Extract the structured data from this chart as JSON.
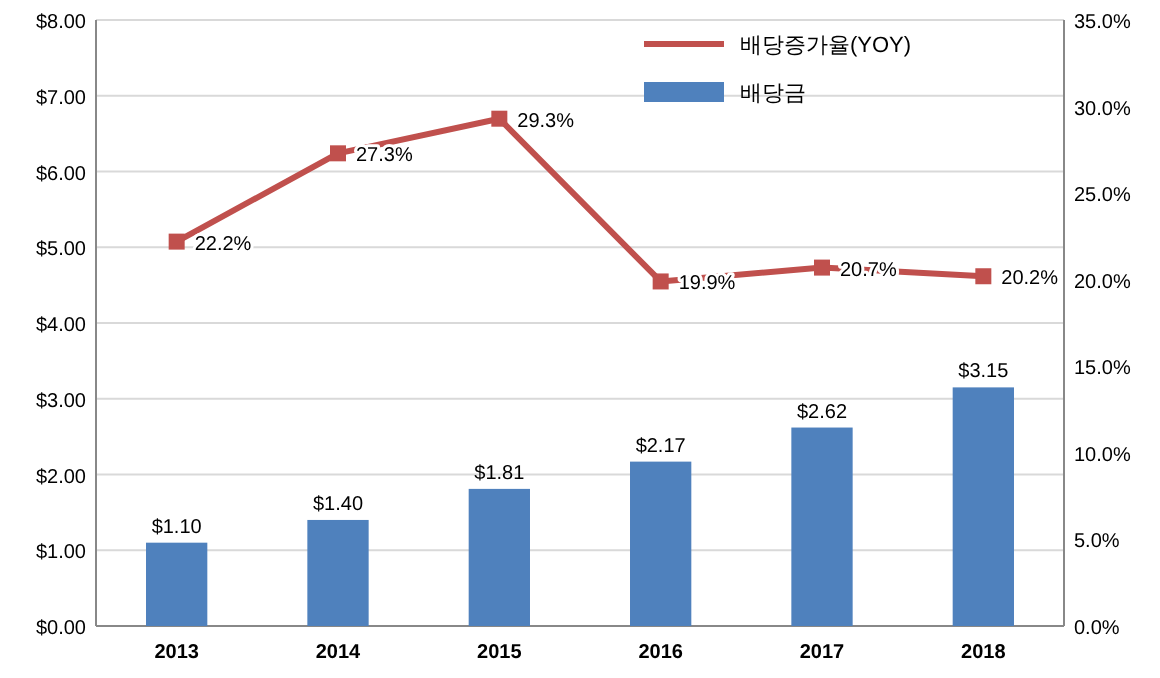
{
  "chart_data": {
    "type": "bar",
    "categories": [
      "2013",
      "2014",
      "2015",
      "2016",
      "2017",
      "2018"
    ],
    "series": [
      {
        "name": "배당금",
        "color": "#4f81bd",
        "values": [
          1.1,
          1.4,
          1.81,
          2.17,
          2.62,
          3.15
        ],
        "value_labels": [
          "$1.10",
          "$1.40",
          "$1.81",
          "$2.17",
          "$2.62",
          "$3.15"
        ]
      },
      {
        "name": "배당증가율(YOY)",
        "type": "line",
        "axis": "y2",
        "color": "#c0504d",
        "values": [
          22.2,
          27.3,
          29.3,
          19.9,
          20.7,
          20.2
        ],
        "value_labels": [
          "22.2%",
          "27.3%",
          "29.3%",
          "19.9%",
          "20.7%",
          "20.2%"
        ]
      }
    ],
    "ylim": [
      0,
      8
    ],
    "yticks": [
      {
        "value": 0,
        "label": "$0.00"
      },
      {
        "value": 1,
        "label": "$1.00"
      },
      {
        "value": 2,
        "label": "$2.00"
      },
      {
        "value": 3,
        "label": "$3.00"
      },
      {
        "value": 4,
        "label": "$4.00"
      },
      {
        "value": 5,
        "label": "$5.00"
      },
      {
        "value": 6,
        "label": "$6.00"
      },
      {
        "value": 7,
        "label": "$7.00"
      },
      {
        "value": 8,
        "label": "$8.00"
      }
    ],
    "y2lim": [
      0,
      35
    ],
    "y2ticks": [
      {
        "value": 0,
        "label": "0.0%"
      },
      {
        "value": 5,
        "label": "5.0%"
      },
      {
        "value": 10,
        "label": "10.0%"
      },
      {
        "value": 15,
        "label": "15.0%"
      },
      {
        "value": 20,
        "label": "20.0%"
      },
      {
        "value": 25,
        "label": "25.0%"
      },
      {
        "value": 30,
        "label": "30.0%"
      },
      {
        "value": 35,
        "label": "35.0%"
      }
    ],
    "grid": "y",
    "legend": "top right",
    "marker": "square",
    "line_style": "solid"
  }
}
